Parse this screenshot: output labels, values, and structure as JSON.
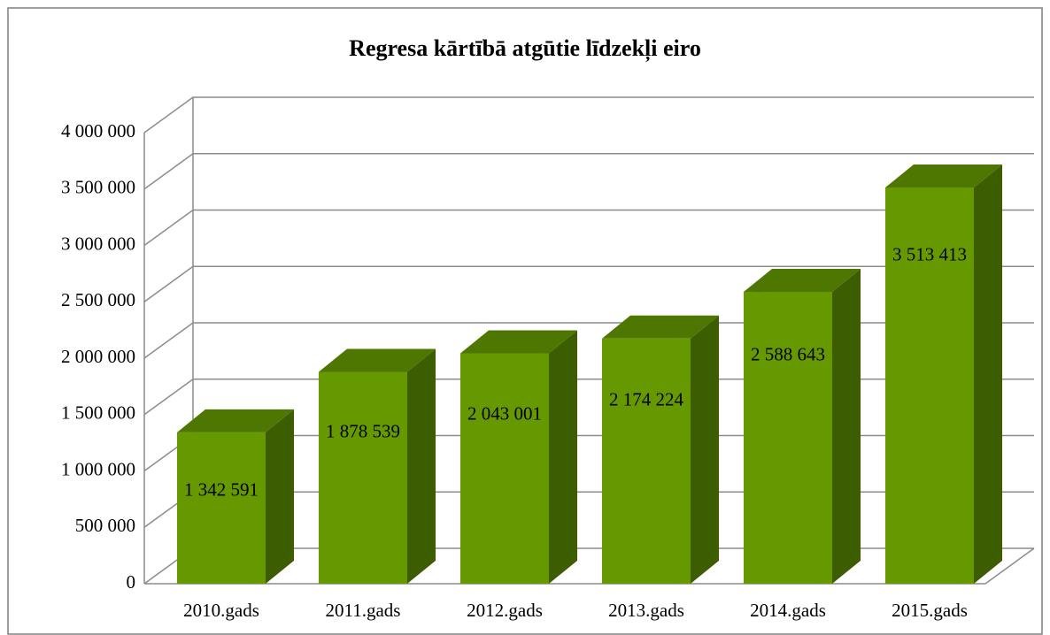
{
  "chart_data": {
    "type": "bar3d",
    "title": "Regresa kārtībā atgūtie līdzekļi eiro",
    "categories": [
      "2010.gads",
      "2011.gads",
      "2012.gads",
      "2013.gads",
      "2014.gads",
      "2015.gads"
    ],
    "values": [
      1342591,
      1878539,
      2043001,
      2174224,
      2588643,
      3513413
    ],
    "value_labels": [
      "1 342 591",
      "1 878 539",
      "2 043 001",
      "2 174 224",
      "2 588 643",
      "3 513 413"
    ],
    "color": "#669900",
    "ylim": [
      0,
      4000000
    ],
    "yticks": [
      0,
      {
        "value": 500000,
        "label": "500 000"
      },
      {
        "value": 1000000,
        "label": "1 000 000"
      },
      {
        "value": 1500000,
        "label": "1 500 000"
      },
      {
        "value": 2000000,
        "label": "2 000 000"
      },
      {
        "value": 2500000,
        "label": "2 500 000"
      },
      {
        "value": 3000000,
        "label": "3 000 000"
      },
      {
        "value": 3500000,
        "label": "3 500 000"
      },
      {
        "value": 4000000,
        "label": "4 000 000"
      }
    ],
    "grid": true
  }
}
